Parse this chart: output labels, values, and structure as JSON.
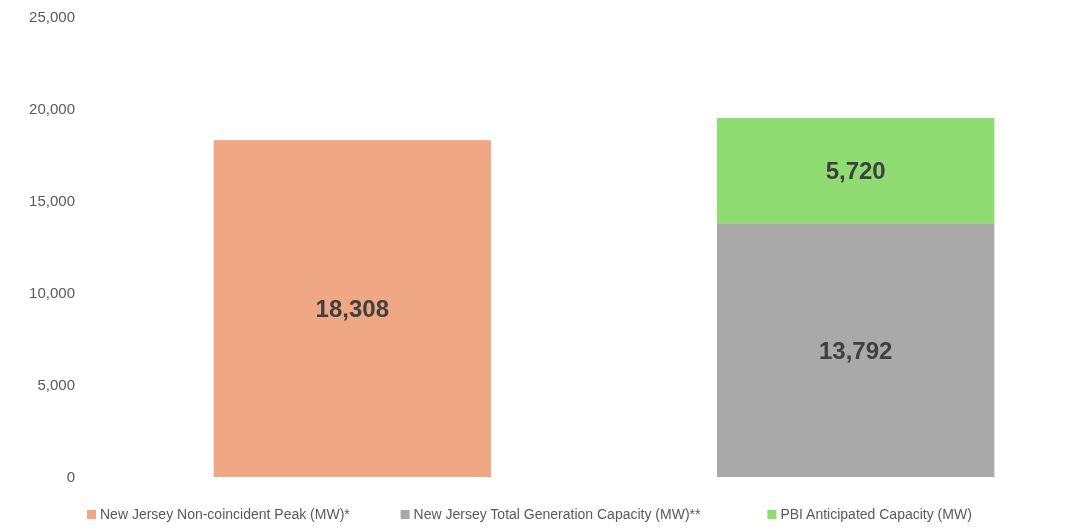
{
  "chart_data": {
    "type": "bar",
    "stacked": true,
    "categories": [
      null,
      null
    ],
    "series": [
      {
        "name": "New Jersey Non-coincident Peak (MW)*",
        "color": "#f0a884",
        "values": [
          18308,
          null
        ],
        "value_labels": [
          "18,308",
          null
        ]
      },
      {
        "name": "New Jersey Total Generation Capacity (MW)**",
        "color": "#a9a9a9",
        "values": [
          null,
          13792
        ],
        "value_labels": [
          null,
          "13,792"
        ]
      },
      {
        "name": "PBI Anticipated Capacity (MW)",
        "color": "#8fdc72",
        "values": [
          null,
          5720
        ],
        "value_labels": [
          null,
          "5,720"
        ]
      }
    ],
    "ylim": [
      0,
      25000
    ],
    "yticks": [
      {
        "value": 0,
        "label": "0"
      },
      {
        "value": 5000,
        "label": "5,000"
      },
      {
        "value": 10000,
        "label": "10,000"
      },
      {
        "value": 15000,
        "label": "15,000"
      },
      {
        "value": 20000,
        "label": "20,000"
      },
      {
        "value": 25000,
        "label": "25,000"
      }
    ],
    "grid": false,
    "legend": "bottom"
  }
}
